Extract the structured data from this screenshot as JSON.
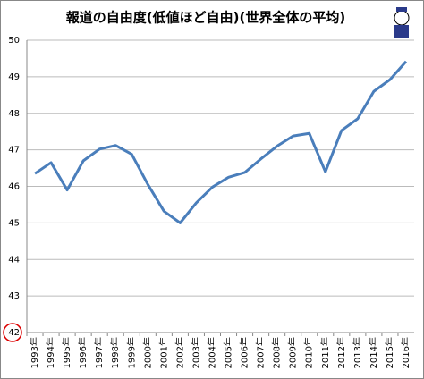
{
  "chart_data": {
    "type": "line",
    "title": "報道の自由度(低値ほど自由)(世界全体の平均)",
    "categories": [
      "1993年",
      "1994年",
      "1995年",
      "1996年",
      "1997年",
      "1998年",
      "1999年",
      "2000年",
      "2001年",
      "2002年",
      "2003年",
      "2004年",
      "2005年",
      "2006年",
      "2007年",
      "2008年",
      "2009年",
      "2010年",
      "2011年",
      "2012年",
      "2013年",
      "2014年",
      "2015年",
      "2016年"
    ],
    "series": [
      {
        "name": "世界全体の平均",
        "color": "#4a7ebb",
        "values": [
          46.35,
          46.65,
          45.9,
          46.7,
          47.02,
          47.12,
          46.88,
          46.05,
          45.32,
          45.0,
          45.55,
          45.98,
          46.25,
          46.38,
          46.75,
          47.1,
          47.38,
          47.45,
          46.4,
          47.53,
          47.85,
          48.6,
          48.92,
          49.42
        ]
      }
    ],
    "ylim": [
      42,
      50
    ],
    "yticks": [
      42,
      43,
      44,
      45,
      46,
      47,
      48,
      49,
      50
    ],
    "grid": true
  }
}
